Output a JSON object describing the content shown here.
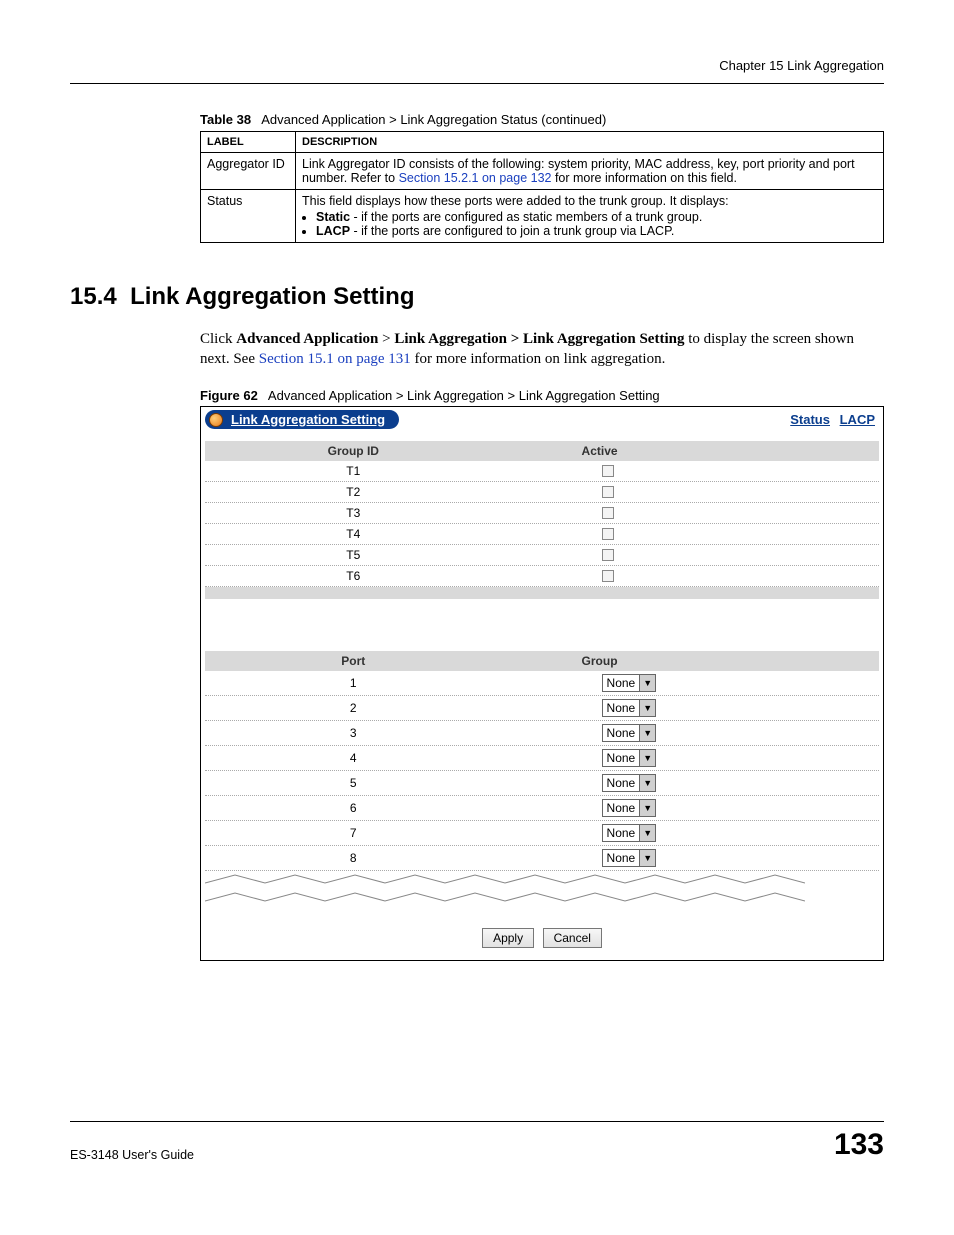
{
  "header": {
    "chapter": "Chapter 15 Link Aggregation"
  },
  "table38": {
    "caption_label": "Table 38",
    "caption_text": "Advanced Application > Link Aggregation Status  (continued)",
    "columns": [
      "LABEL",
      "DESCRIPTION"
    ],
    "rows": {
      "agg": {
        "label": "Aggregator ID",
        "desc_pre": "Link Aggregator ID consists of the following: system priority, MAC address, key, port priority and port number. Refer to ",
        "desc_link": "Section 15.2.1 on page 132",
        "desc_post": " for more information on this field."
      },
      "status": {
        "label": "Status",
        "line1": "This field displays how these ports were added to the trunk group. It displays:",
        "b1_bold": "Static",
        "b1_rest": " - if the ports are configured as static members of a trunk group.",
        "b2_bold": "LACP",
        "b2_rest": " - if the ports are configured to join a trunk group via LACP."
      }
    }
  },
  "section": {
    "number": "15.4",
    "title": "Link Aggregation Setting",
    "para_pre": "Click ",
    "breadcrumb1": "Advanced Application",
    "gt1": " > ",
    "breadcrumb2": "Link Aggregation > Link Aggregation Setting",
    "para_mid": " to display the screen shown next. See ",
    "para_link": "Section 15.1 on page 131",
    "para_post": " for more information on link aggregation."
  },
  "figure": {
    "label": "Figure 62",
    "caption": "Advanced Application > Link Aggregation > Link Aggregation Setting",
    "panel_title": "Link Aggregation Setting",
    "nav_status": "Status",
    "nav_lacp": "LACP",
    "groups_table": {
      "col1": "Group ID",
      "col2": "Active",
      "rows": [
        "T1",
        "T2",
        "T3",
        "T4",
        "T5",
        "T6"
      ]
    },
    "ports_table": {
      "col1": "Port",
      "col2": "Group",
      "rows": [
        "1",
        "2",
        "3",
        "4",
        "5",
        "6",
        "7",
        "8"
      ],
      "select_value": "None"
    },
    "buttons": {
      "apply": "Apply",
      "cancel": "Cancel"
    }
  },
  "footer": {
    "guide": "ES-3148 User's Guide",
    "page": "133"
  },
  "colors": {
    "link": "#1a3fbf",
    "pill_bg": "#0b3e8e",
    "row_header_bg": "#d9d9d9"
  }
}
